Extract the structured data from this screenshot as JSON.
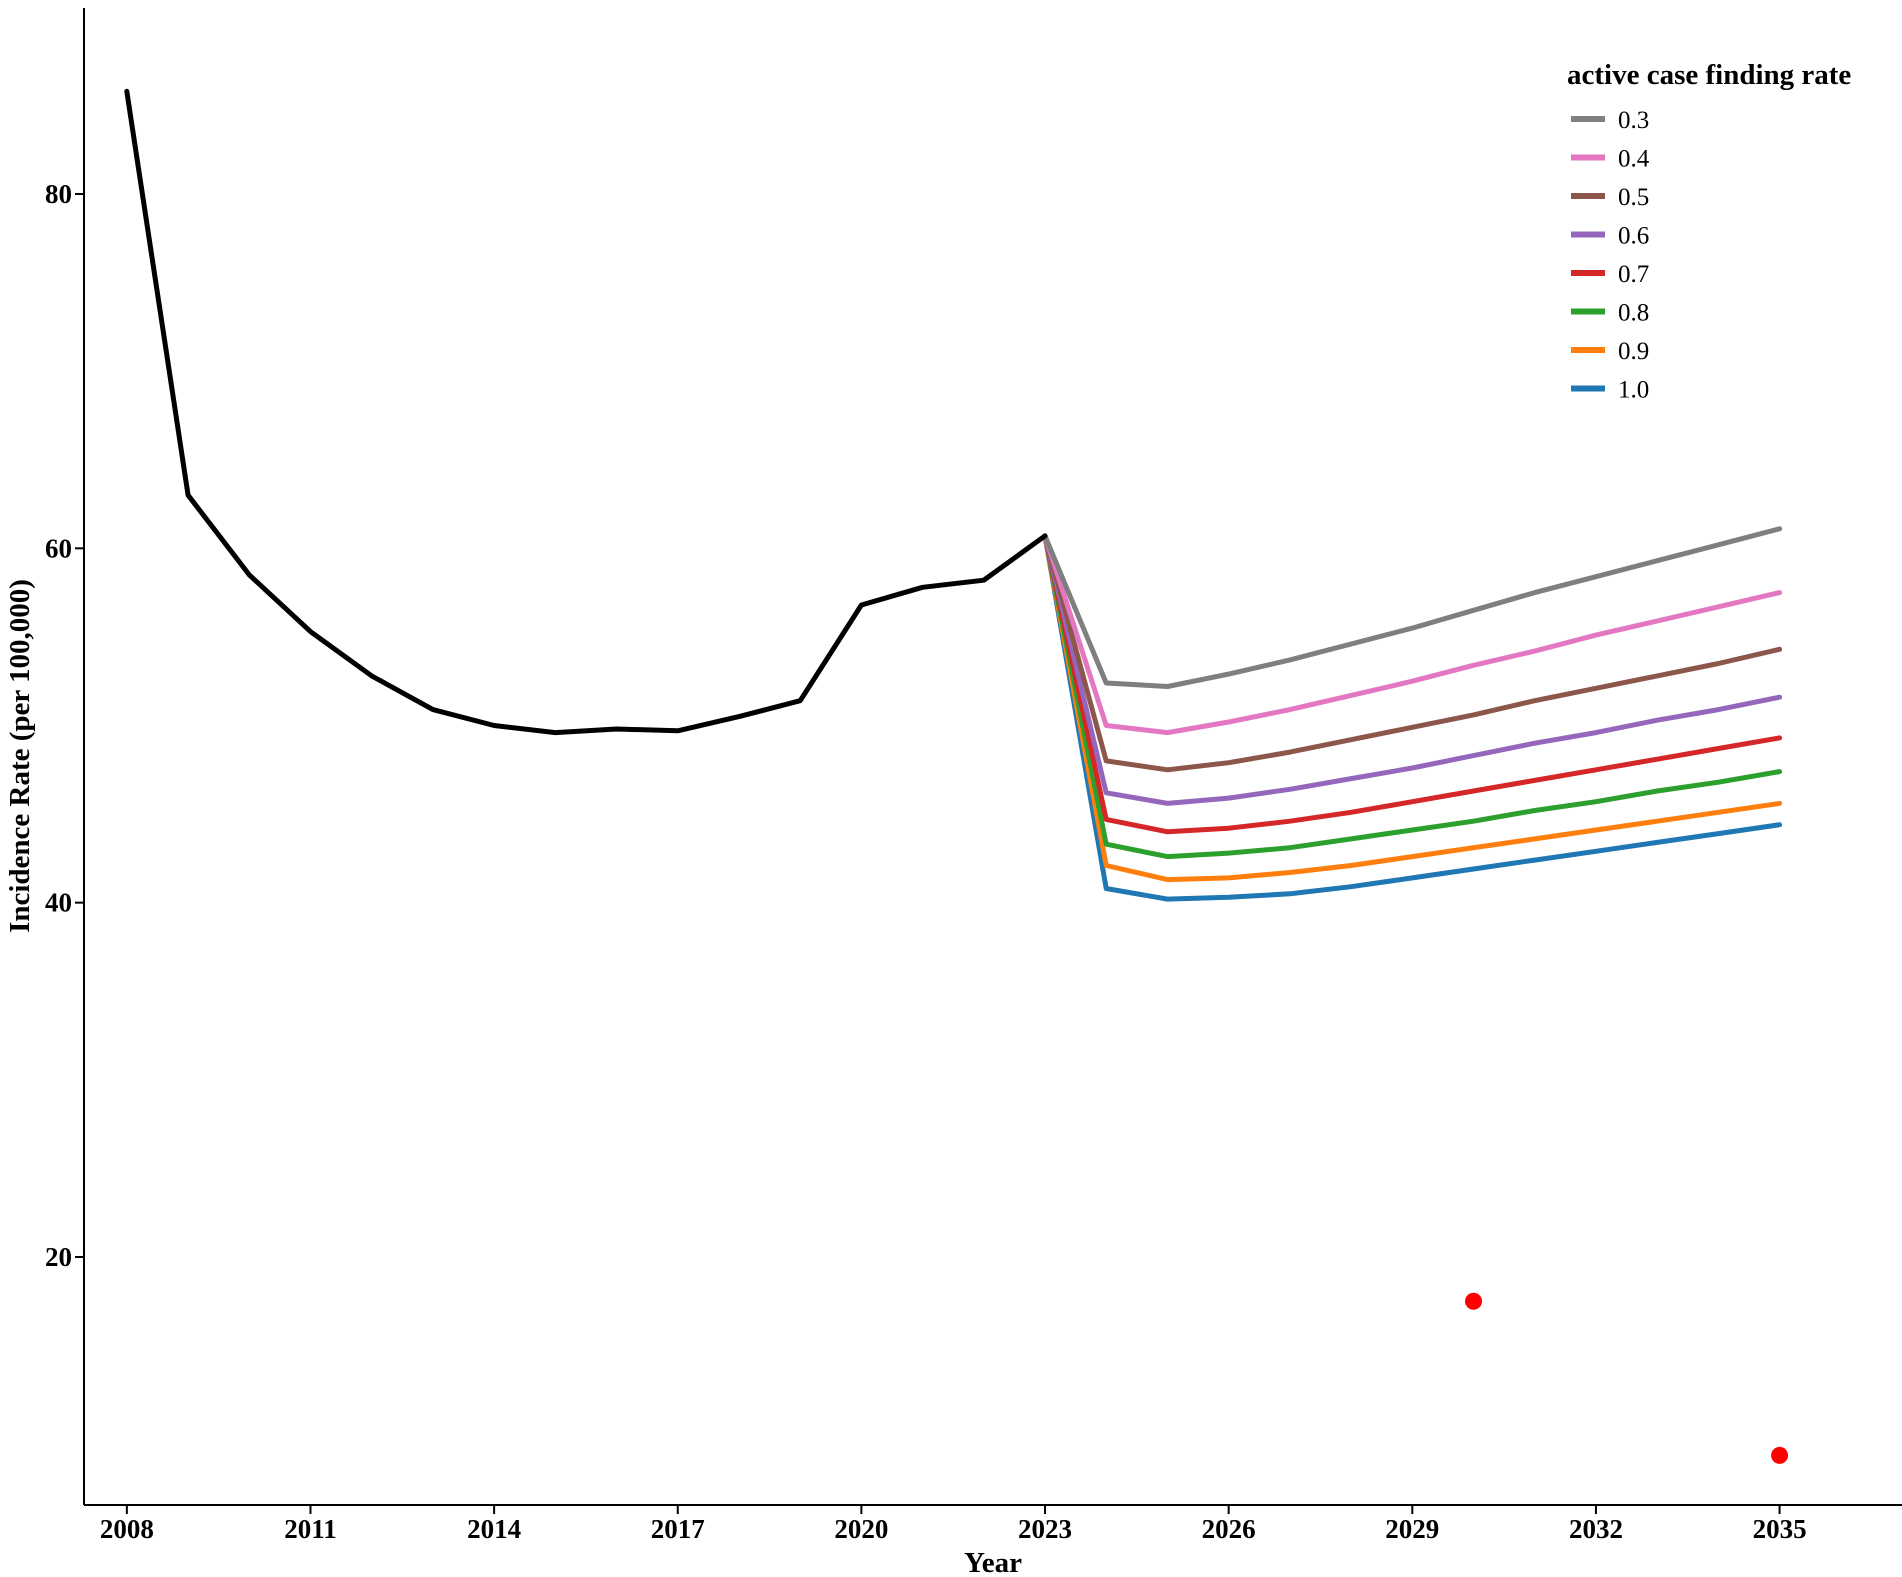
{
  "chart_data": {
    "type": "line",
    "title": "",
    "xlabel": "Year",
    "ylabel": "Incidence Rate (per 100,000)",
    "xlim": [
      2007.3,
      2037.0
    ],
    "ylim": [
      6.0,
      90.5
    ],
    "x_ticks": [
      2008,
      2011,
      2014,
      2017,
      2020,
      2023,
      2026,
      2029,
      2032,
      2035
    ],
    "x_tick_labels": [
      "2008",
      "2011",
      "2014",
      "2017",
      "2020",
      "2023",
      "2026",
      "2029",
      "2032",
      "2035"
    ],
    "y_ticks": [
      20,
      40,
      60,
      80
    ],
    "y_tick_labels": [
      "20",
      "40",
      "60",
      "80"
    ],
    "grid": false,
    "legend": {
      "title": "active case finding rate",
      "placement": "top-right"
    },
    "historical": {
      "color": "#000000",
      "x": [
        2008,
        2009,
        2010,
        2011,
        2012,
        2013,
        2014,
        2015,
        2016,
        2017,
        2018,
        2019,
        2020,
        2021,
        2022,
        2023
      ],
      "y": [
        85.8,
        63.0,
        58.5,
        55.3,
        52.8,
        50.9,
        50.0,
        49.6,
        49.8,
        49.7,
        50.5,
        51.4,
        56.8,
        57.8,
        58.2,
        60.7
      ]
    },
    "series": [
      {
        "name": "0.3",
        "color": "#7f7f7f",
        "x": [
          2023,
          2024,
          2025,
          2026,
          2027,
          2028,
          2029,
          2030,
          2031,
          2032,
          2033,
          2034,
          2035
        ],
        "y": [
          60.7,
          52.4,
          52.2,
          52.9,
          53.7,
          54.6,
          55.5,
          56.5,
          57.5,
          58.4,
          59.3,
          60.2,
          61.1
        ]
      },
      {
        "name": "0.4",
        "color": "#e377c2",
        "x": [
          2023,
          2024,
          2025,
          2026,
          2027,
          2028,
          2029,
          2030,
          2031,
          2032,
          2033,
          2034,
          2035
        ],
        "y": [
          60.7,
          50.0,
          49.6,
          50.2,
          50.9,
          51.7,
          52.5,
          53.4,
          54.2,
          55.1,
          55.9,
          56.7,
          57.5
        ]
      },
      {
        "name": "0.5",
        "color": "#8c564b",
        "x": [
          2023,
          2024,
          2025,
          2026,
          2027,
          2028,
          2029,
          2030,
          2031,
          2032,
          2033,
          2034,
          2035
        ],
        "y": [
          60.7,
          48.0,
          47.5,
          47.9,
          48.5,
          49.2,
          49.9,
          50.6,
          51.4,
          52.1,
          52.8,
          53.5,
          54.3
        ]
      },
      {
        "name": "0.6",
        "color": "#9467bd",
        "x": [
          2023,
          2024,
          2025,
          2026,
          2027,
          2028,
          2029,
          2030,
          2031,
          2032,
          2033,
          2034,
          2035
        ],
        "y": [
          60.7,
          46.2,
          45.6,
          45.9,
          46.4,
          47.0,
          47.6,
          48.3,
          49.0,
          49.6,
          50.3,
          50.9,
          51.6
        ]
      },
      {
        "name": "0.7",
        "color": "#d62728",
        "x": [
          2023,
          2024,
          2025,
          2026,
          2027,
          2028,
          2029,
          2030,
          2031,
          2032,
          2033,
          2034,
          2035
        ],
        "y": [
          60.7,
          44.7,
          44.0,
          44.2,
          44.6,
          45.1,
          45.7,
          46.3,
          46.9,
          47.5,
          48.1,
          48.7,
          49.3
        ]
      },
      {
        "name": "0.8",
        "color": "#2ca02c",
        "x": [
          2023,
          2024,
          2025,
          2026,
          2027,
          2028,
          2029,
          2030,
          2031,
          2032,
          2033,
          2034,
          2035
        ],
        "y": [
          60.7,
          43.3,
          42.6,
          42.8,
          43.1,
          43.6,
          44.1,
          44.6,
          45.2,
          45.7,
          46.3,
          46.8,
          47.4
        ]
      },
      {
        "name": "0.9",
        "color": "#ff7f0e",
        "x": [
          2023,
          2024,
          2025,
          2026,
          2027,
          2028,
          2029,
          2030,
          2031,
          2032,
          2033,
          2034,
          2035
        ],
        "y": [
          60.7,
          42.1,
          41.3,
          41.4,
          41.7,
          42.1,
          42.6,
          43.1,
          43.6,
          44.1,
          44.6,
          45.1,
          45.6
        ]
      },
      {
        "name": "1.0",
        "color": "#1f77b4",
        "x": [
          2023,
          2024,
          2025,
          2026,
          2027,
          2028,
          2029,
          2030,
          2031,
          2032,
          2033,
          2034,
          2035
        ],
        "y": [
          60.7,
          40.8,
          40.2,
          40.3,
          40.5,
          40.9,
          41.4,
          41.9,
          42.4,
          42.9,
          43.4,
          43.9,
          44.4
        ]
      }
    ],
    "targets": {
      "color": "#ff0000",
      "points": [
        {
          "x": 2030,
          "y": 17.5
        },
        {
          "x": 2035,
          "y": 8.8
        }
      ]
    }
  }
}
